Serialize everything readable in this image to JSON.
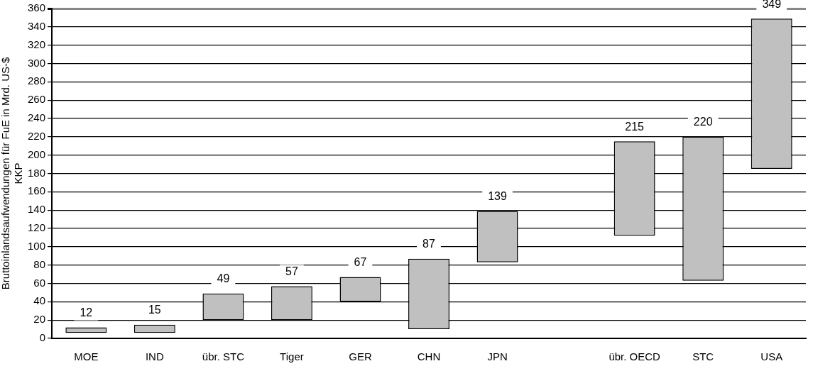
{
  "chart_data": {
    "type": "bar",
    "ylabel": "Bruttoinlandsaufwendungen für FuE in Mrd. US-$ KKP",
    "categories": [
      "MOE",
      "IND",
      "übr. STC",
      "Tiger",
      "GER",
      "CHN",
      "JPN",
      null,
      "übr. OECD",
      "STC",
      "USA"
    ],
    "base": [
      6,
      6,
      20,
      20,
      40,
      10,
      83,
      null,
      112,
      63,
      185
    ],
    "values": [
      6,
      9,
      29,
      37,
      27,
      77,
      56,
      null,
      103,
      157,
      164
    ],
    "value_labels": [
      "12",
      "15",
      "49",
      "57",
      "67",
      "87",
      "139",
      null,
      "215",
      "220",
      "349"
    ],
    "color": "#c0c0c0",
    "ylim": [
      0,
      360
    ],
    "yticks": [
      0,
      20,
      40,
      60,
      80,
      100,
      120,
      140,
      160,
      180,
      200,
      220,
      240,
      260,
      280,
      300,
      320,
      340,
      360
    ],
    "grid": "y",
    "legend": false
  }
}
